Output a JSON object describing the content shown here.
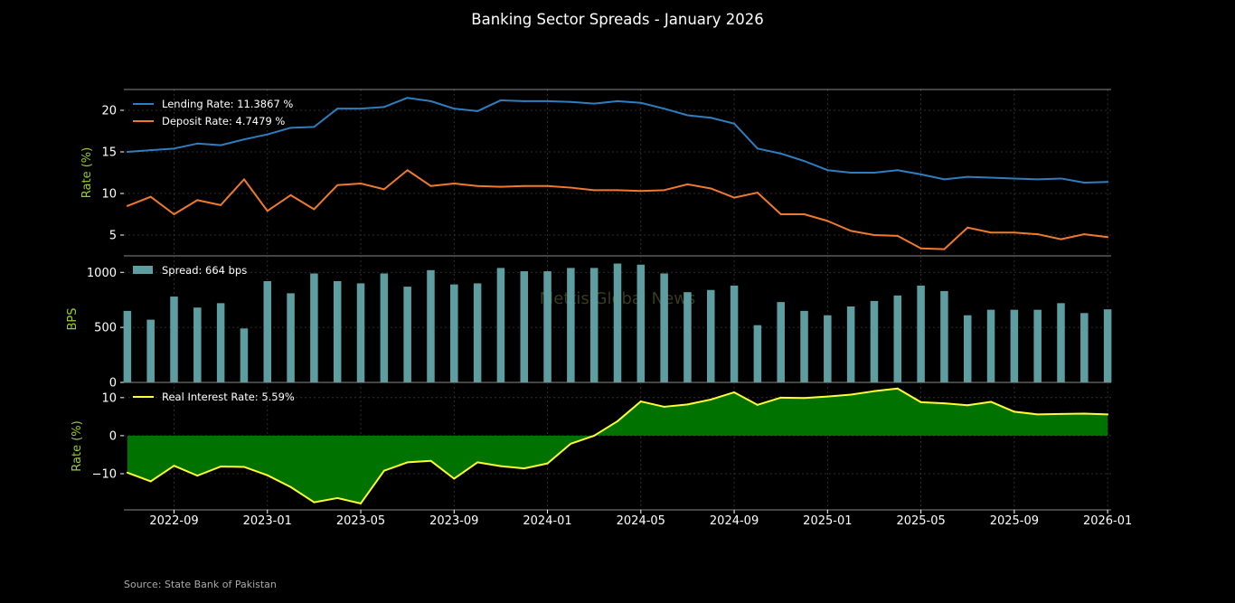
{
  "chart_data": {
    "type": "line",
    "title": "Banking Sector Spreads - January 2026",
    "source": "Source: State Bank of Pakistan",
    "watermark": "Mettis Global News",
    "x": [
      "2022-07",
      "2022-08",
      "2022-09",
      "2022-10",
      "2022-11",
      "2022-12",
      "2023-01",
      "2023-02",
      "2023-03",
      "2023-04",
      "2023-05",
      "2023-06",
      "2023-07",
      "2023-08",
      "2023-09",
      "2023-10",
      "2023-11",
      "2023-12",
      "2024-01",
      "2024-02",
      "2024-03",
      "2024-04",
      "2024-05",
      "2024-06",
      "2024-07",
      "2024-08",
      "2024-09",
      "2024-10",
      "2024-11",
      "2024-12",
      "2025-01",
      "2025-02",
      "2025-03",
      "2025-04",
      "2025-05",
      "2025-06",
      "2025-07",
      "2025-08",
      "2025-09",
      "2025-10",
      "2025-11",
      "2025-12",
      "2026-01"
    ],
    "xticks": [
      "2022-09",
      "2023-01",
      "2023-05",
      "2023-09",
      "2024-01",
      "2024-05",
      "2024-09",
      "2025-01",
      "2025-05",
      "2025-09",
      "2026-01"
    ],
    "colors": {
      "background": "#000000",
      "lending": "#2e7ebf",
      "deposit": "#ef7a2e",
      "spread_bar": "#5f9ea0",
      "real_line": "#ffff33",
      "real_negative": "#e60000",
      "real_positive": "#007200",
      "ylabel": "#9acd32",
      "tick": "#ffffff",
      "source": "#aaaaaa",
      "watermark": "#3a3a1e"
    },
    "panels": [
      {
        "ylabel": "Rate (%)",
        "ylim": [
          2.5,
          22.5
        ],
        "yticks": [
          5,
          10,
          15,
          20
        ],
        "grid": true,
        "legend": "top-left",
        "series": [
          {
            "name": "Lending Rate: 11.3867 %",
            "type": "line",
            "values": [
              15.0,
              15.2,
              15.4,
              16.0,
              15.8,
              16.5,
              17.1,
              17.9,
              18.0,
              20.2,
              20.2,
              20.4,
              21.5,
              21.1,
              20.2,
              19.9,
              21.2,
              21.1,
              21.1,
              21.0,
              20.8,
              21.1,
              20.9,
              20.2,
              19.4,
              19.1,
              18.4,
              15.4,
              14.8,
              13.9,
              12.8,
              12.5,
              12.5,
              12.8,
              12.3,
              11.7,
              12.0,
              11.9,
              11.8,
              11.7,
              11.8,
              11.3,
              11.39
            ]
          },
          {
            "name": "Deposit Rate: 4.7479 %",
            "type": "line",
            "values": [
              8.5,
              9.6,
              7.5,
              9.2,
              8.6,
              11.7,
              7.9,
              9.8,
              8.1,
              11.0,
              11.2,
              10.5,
              12.8,
              10.9,
              11.2,
              10.9,
              10.8,
              10.9,
              10.9,
              10.7,
              10.4,
              10.4,
              10.3,
              10.4,
              11.1,
              10.6,
              9.5,
              10.1,
              7.5,
              7.5,
              6.7,
              5.5,
              5.0,
              4.9,
              3.4,
              3.3,
              5.9,
              5.3,
              5.3,
              5.1,
              4.5,
              5.1,
              4.75
            ]
          }
        ]
      },
      {
        "ylabel": "BPS",
        "ylim": [
          0,
          1150
        ],
        "yticks": [
          0,
          500,
          1000
        ],
        "grid": true,
        "legend": "top-left",
        "series": [
          {
            "name": "Spread: 664 bps",
            "type": "bar",
            "values": [
              650,
              570,
              780,
              680,
              720,
              490,
              920,
              810,
              990,
              920,
              900,
              990,
              870,
              1020,
              890,
              900,
              1040,
              1010,
              1010,
              1040,
              1040,
              1080,
              1070,
              990,
              820,
              840,
              880,
              520,
              730,
              650,
              610,
              690,
              740,
              790,
              880,
              830,
              610,
              660,
              660,
              660,
              720,
              630,
              664
            ]
          }
        ]
      },
      {
        "ylabel": "Rate (%)",
        "ylim": [
          -19.5,
          14
        ],
        "yticks": [
          -10,
          0,
          10
        ],
        "grid": true,
        "legend": "top-left",
        "series": [
          {
            "name": "Real Interest Rate: 5.59%",
            "type": "area",
            "values": [
              -9.7,
              -12.0,
              -7.9,
              -10.5,
              -8.1,
              -8.2,
              -10.4,
              -13.5,
              -17.5,
              -16.4,
              -17.8,
              -9.2,
              -7.0,
              -6.6,
              -11.3,
              -7.0,
              -8.0,
              -8.6,
              -7.3,
              -2.1,
              0.0,
              3.8,
              9.0,
              7.6,
              8.2,
              9.5,
              11.4,
              8.1,
              10.0,
              9.9,
              10.3,
              10.8,
              11.7,
              12.4,
              8.8,
              8.5,
              8.0,
              8.9,
              6.3,
              5.6,
              5.7,
              5.8,
              5.59
            ]
          }
        ]
      }
    ]
  }
}
